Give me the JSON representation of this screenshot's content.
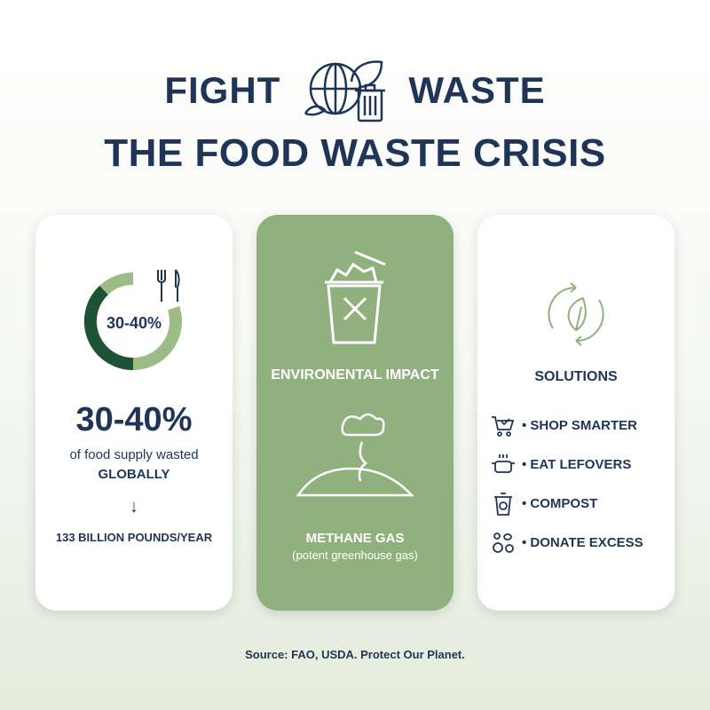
{
  "header": {
    "word_left": "FIGHT",
    "word_right": "WASTE",
    "logo_icon": "globe-leaf-trash-icon",
    "subtitle": "THE FOOD WASTE CRISIS"
  },
  "cards": [
    {
      "ring_label": "30-40%",
      "ring_percent": "30-40",
      "icon": "fork-knife-icon",
      "stat": "30-40%",
      "line1": "of food supply wasted",
      "line2": "GLOBALLY",
      "arrow": "↓",
      "line3": "133 BILLION POUNDS/YEAR"
    },
    {
      "icon_top": "overflowing-trash-icon",
      "heading": "ENVIRONENTAL IMPACT",
      "icon_bottom": "landfill-cloud-icon",
      "gas": "METHANE GAS",
      "gas_note": "(potent greenhouse gas)"
    },
    {
      "icon": "recycle-leaf-icon",
      "heading": "SOLUTIONS",
      "items": [
        {
          "icon": "cart-icon",
          "label": "• SHOP SMARTER"
        },
        {
          "icon": "pot-icon",
          "label": "• EAT LEFOVERS"
        },
        {
          "icon": "compost-bin-icon",
          "label": "• COMPOST"
        },
        {
          "icon": "donate-food-icon",
          "label": "• DONATE EXCESS"
        }
      ]
    }
  ],
  "source": "Source: FAO, USDA. Protect Our Planet.",
  "colors": {
    "navy": "#1f3557",
    "dark_green": "#1e5234",
    "light_green": "#90b07e"
  }
}
